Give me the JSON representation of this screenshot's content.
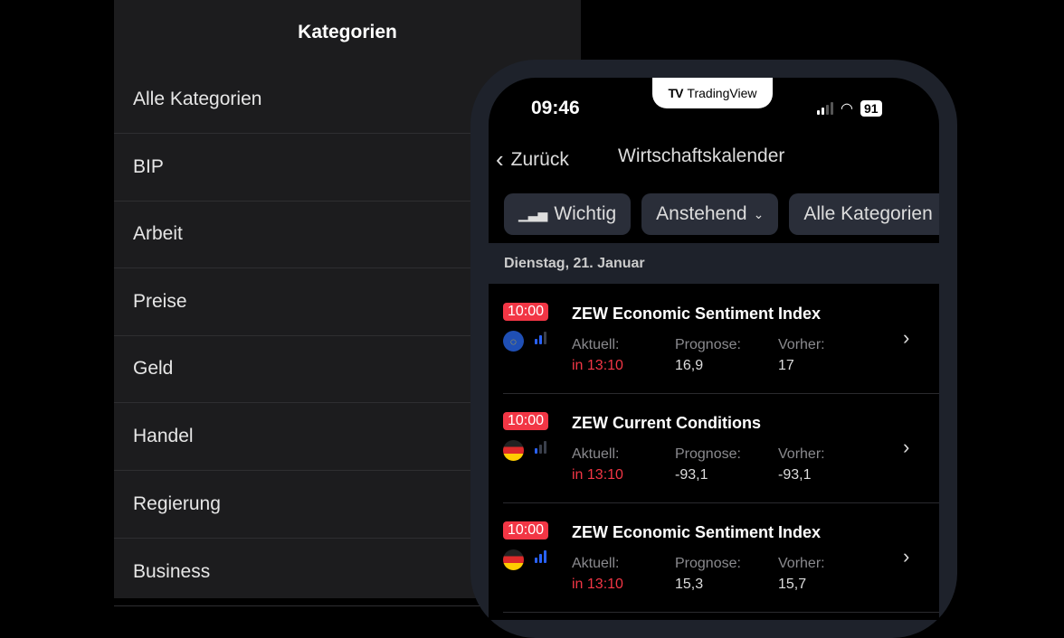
{
  "categories_panel": {
    "title": "Kategorien",
    "items": [
      "Alle Kategorien",
      "BIP",
      "Arbeit",
      "Preise",
      "Geld",
      "Handel",
      "Regierung",
      "Business"
    ]
  },
  "status_bar": {
    "time": "09:46",
    "brand": "TradingView",
    "battery": "91"
  },
  "nav": {
    "back_label": "Zurück",
    "title": "Wirtschaftskalender"
  },
  "filters": {
    "important": "Wichtig",
    "period": "Anstehend",
    "category": "Alle Kategorien"
  },
  "date_header": "Dienstag, 21. Januar",
  "labels": {
    "actual": "Aktuell:",
    "forecast": "Prognose:",
    "previous": "Vorher:"
  },
  "colors": {
    "accent_red": "#f23645",
    "importance_blue": "#2962ff"
  },
  "events": [
    {
      "time": "10:00",
      "name": "ZEW Economic Sentiment Index",
      "country": "EU",
      "importance": 2,
      "actual": "in 13:10",
      "forecast": "16,9",
      "previous": "17"
    },
    {
      "time": "10:00",
      "name": "ZEW Current Conditions",
      "country": "DE",
      "importance": 1,
      "actual": "in 13:10",
      "forecast": "-93,1",
      "previous": "-93,1"
    },
    {
      "time": "10:00",
      "name": "ZEW Economic Sentiment Index",
      "country": "DE",
      "importance": 3,
      "actual": "in 13:10",
      "forecast": "15,3",
      "previous": "15,7"
    }
  ]
}
